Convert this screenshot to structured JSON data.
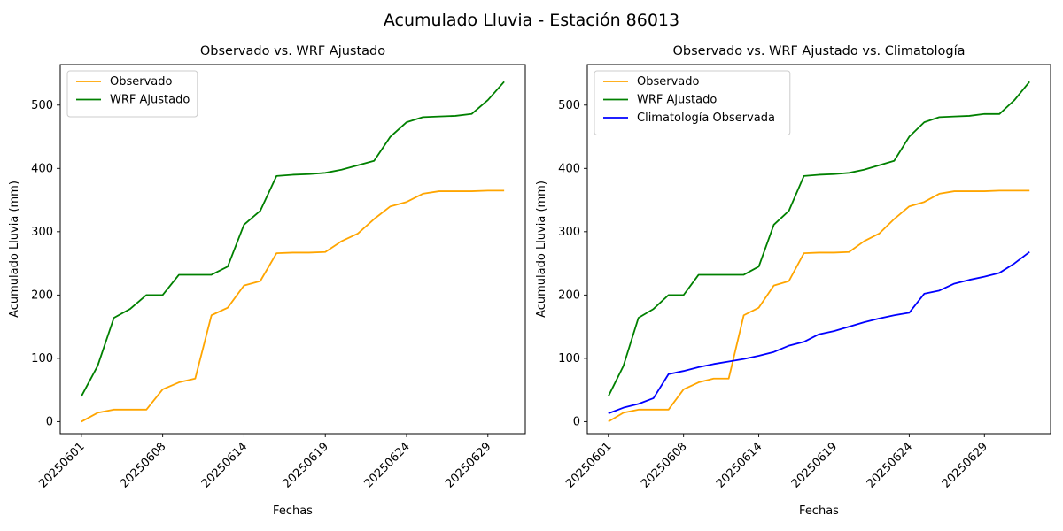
{
  "figure": {
    "title": "Acumulado Lluvia - Estación 86013",
    "background": "#ffffff",
    "text_color": "#000000"
  },
  "chart_data": [
    {
      "type": "line",
      "title": "Observado vs. WRF Ajustado",
      "xlabel": "Fechas",
      "ylabel": "Acumulado Lluvia (mm)",
      "x_tick_labels": [
        "20250601",
        "20250608",
        "20250614",
        "20250619",
        "20250624",
        "20250629"
      ],
      "x_tick_positions": [
        0,
        5,
        10,
        15,
        20,
        25
      ],
      "n_points": 27,
      "y_ticks": [
        0,
        100,
        200,
        300,
        400,
        500
      ],
      "xlim": [
        -1.3,
        27.3
      ],
      "ylim": [
        -19,
        564
      ],
      "grid": false,
      "legend_position": "upper left",
      "series": [
        {
          "name": "Observado",
          "color": "#FFA500",
          "values": [
            0,
            14,
            19,
            19,
            19,
            51,
            62,
            68,
            168,
            180,
            215,
            222,
            266,
            267,
            267,
            268,
            285,
            297,
            320,
            340,
            347,
            360,
            364,
            364,
            364,
            365,
            365
          ]
        },
        {
          "name": "WRF Ajustado",
          "color": "#008000",
          "values": [
            40,
            88,
            164,
            178,
            200,
            200,
            232,
            232,
            232,
            245,
            311,
            333,
            388,
            390,
            391,
            393,
            398,
            405,
            412,
            450,
            473,
            481,
            482,
            483,
            486,
            508,
            537
          ]
        }
      ]
    },
    {
      "type": "line",
      "title": "Observado vs. WRF Ajustado vs. Climatología",
      "xlabel": "Fechas",
      "ylabel": "Acumulado Lluvia (mm)",
      "x_tick_labels": [
        "20250601",
        "20250608",
        "20250614",
        "20250619",
        "20250624",
        "20250629"
      ],
      "x_tick_positions": [
        0,
        5,
        10,
        15,
        20,
        25
      ],
      "n_points": 29,
      "y_ticks": [
        0,
        100,
        200,
        300,
        400,
        500
      ],
      "xlim": [
        -1.4,
        29.4
      ],
      "ylim": [
        -19,
        564
      ],
      "grid": false,
      "legend_position": "upper left",
      "series": [
        {
          "name": "Observado",
          "color": "#FFA500",
          "values": [
            0,
            14,
            19,
            19,
            19,
            51,
            62,
            68,
            68,
            168,
            180,
            215,
            222,
            266,
            267,
            267,
            268,
            285,
            297,
            320,
            340,
            347,
            360,
            364,
            364,
            364,
            365,
            365,
            365
          ]
        },
        {
          "name": "WRF Ajustado",
          "color": "#008000",
          "values": [
            40,
            88,
            164,
            178,
            200,
            200,
            232,
            232,
            232,
            232,
            245,
            311,
            333,
            388,
            390,
            391,
            393,
            398,
            405,
            412,
            450,
            473,
            481,
            482,
            483,
            486,
            486,
            508,
            537
          ]
        },
        {
          "name": "Climatología Observada",
          "color": "#0000FF",
          "values": [
            13,
            22,
            28,
            37,
            75,
            80,
            86,
            91,
            95,
            99,
            104,
            110,
            120,
            126,
            138,
            143,
            150,
            157,
            163,
            168,
            172,
            202,
            207,
            218,
            224,
            229,
            235,
            250,
            268
          ]
        }
      ]
    }
  ]
}
